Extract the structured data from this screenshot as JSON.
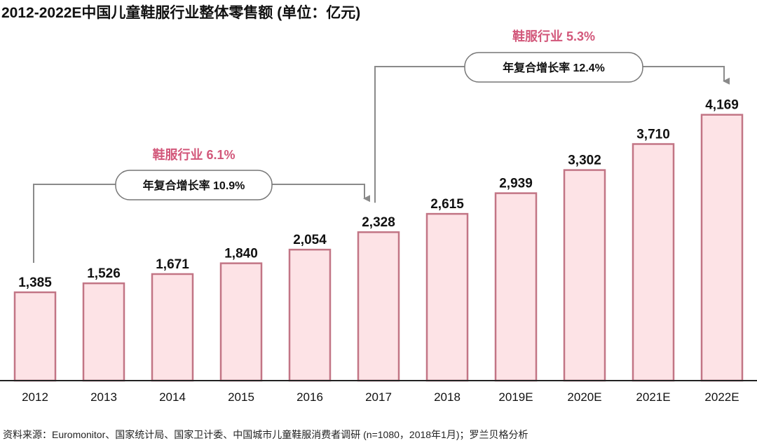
{
  "chart_data": {
    "type": "bar",
    "title": "2012-2022E中国儿童鞋服行业整体零售额 (单位：亿元)",
    "categories": [
      "2012",
      "2013",
      "2014",
      "2015",
      "2016",
      "2017",
      "2018",
      "2019E",
      "2020E",
      "2021E",
      "2022E"
    ],
    "values": [
      1385,
      1526,
      1671,
      1840,
      2054,
      2328,
      2615,
      2939,
      3302,
      3710,
      4169
    ],
    "value_labels": [
      "1,385",
      "1,526",
      "1,671",
      "1,840",
      "2,054",
      "2,328",
      "2,615",
      "2,939",
      "3,302",
      "3,710",
      "4,169"
    ],
    "xlabel": "",
    "ylabel": "",
    "ylim": [
      0,
      4600
    ],
    "grid": false,
    "annotations": [
      {
        "from": "2012",
        "to": "2017",
        "title": "鞋服行业 6.1%",
        "label": "年复合增长率 10.9%"
      },
      {
        "from": "2017",
        "to": "2022E",
        "title": "鞋服行业 5.3%",
        "label": "年复合增长率 12.4%"
      }
    ],
    "colors": {
      "bar_fill": "#fde3e6",
      "bar_stroke": "#c27585",
      "accent": "#d2577a",
      "connector": "#8a8a8a"
    }
  },
  "source": "资料来源：Euromonitor、国家统计局、国家卫计委、中国城市儿童鞋服消费者调研 (n=1080，2018年1月)；罗兰贝格分析"
}
